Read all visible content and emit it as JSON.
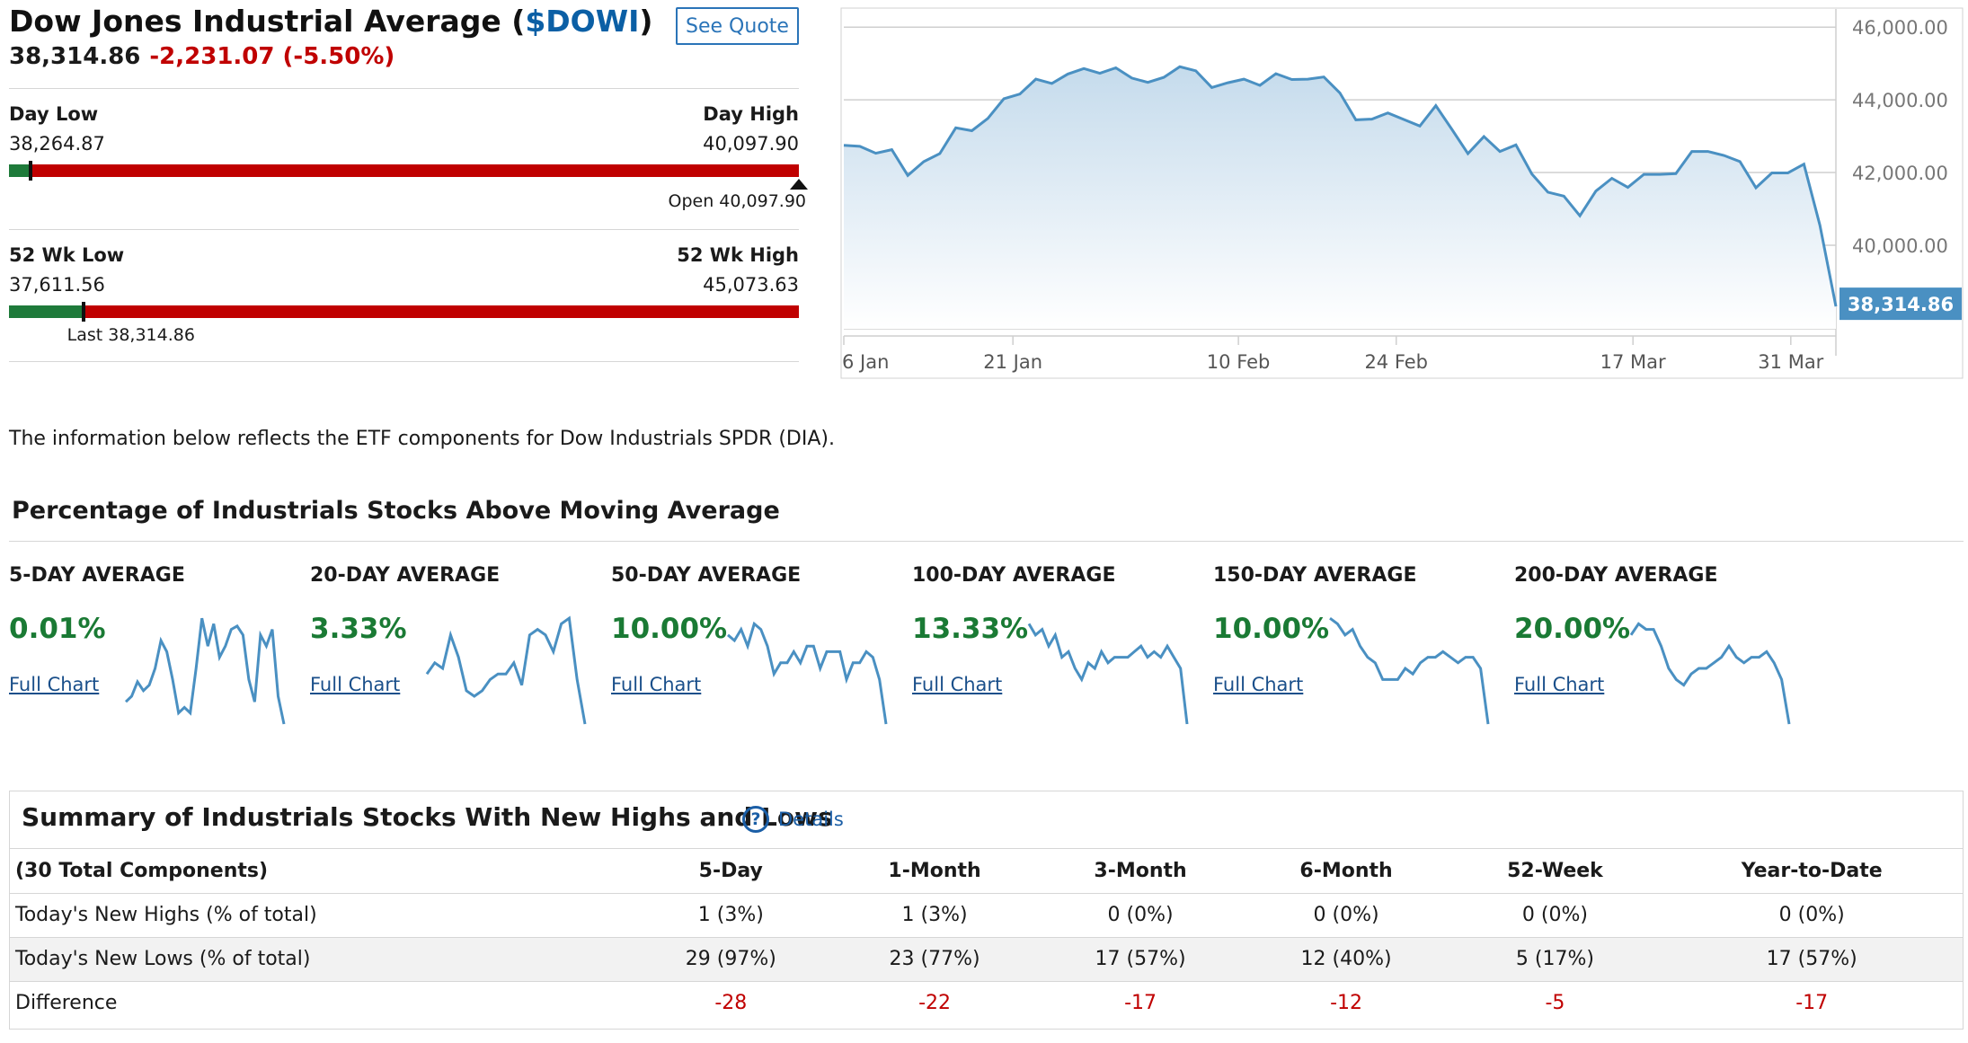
{
  "quote": {
    "title_prefix": "Dow Jones Industrial Average (",
    "symbol": "$DOWI",
    "title_suffix": ")",
    "last": "38,314.86",
    "change": "-2,231.07 (-5.50%)",
    "see_quote_label": "See Quote"
  },
  "day_range": {
    "low_label": "Day Low",
    "low": "38,264.87",
    "high_label": "Day High",
    "high": "40,097.90",
    "open_note": "Open 40,097.90",
    "last_position_fraction": 0.027,
    "open_position_fraction": 1.0
  },
  "week52_range": {
    "low_label": "52 Wk Low",
    "low": "37,611.56",
    "high_label": "52 Wk High",
    "high": "45,073.63",
    "last_note": "Last 38,314.86",
    "last_position_fraction": 0.094
  },
  "price_chart": {
    "x_labels": [
      "6 Jan",
      "21 Jan",
      "10 Feb",
      "24 Feb",
      "17 Mar",
      "31 Mar"
    ],
    "y_labels": [
      "46,000.00",
      "44,000.00",
      "42,000.00",
      "40,000.00"
    ],
    "last_label": "38,314.86",
    "line_color": "#4a90c2",
    "label_bg": "#4a90c2"
  },
  "chart_data": {
    "type": "area",
    "series": [
      {
        "values": [
          42750,
          42720,
          42530,
          42630,
          41920,
          42300,
          42520,
          43230,
          43150,
          43490,
          44030,
          44160,
          44570,
          44450,
          44710,
          44860,
          44730,
          44880,
          44600,
          44480,
          44620,
          44910,
          44800,
          44340,
          44470,
          44570,
          44400,
          44720,
          44560,
          44570,
          44630,
          44190,
          43450,
          43470,
          43640,
          43460,
          43280,
          43840,
          43190,
          42520,
          42990,
          42580,
          42760,
          41960,
          41460,
          41350,
          40810,
          41490,
          41840,
          41590,
          41950,
          41950,
          41970,
          42580,
          42580,
          42470,
          42300,
          41580,
          41990,
          41990,
          42230,
          40550,
          38314.86
        ]
      }
    ],
    "x_date_range": [
      "2025-01-06",
      "2025-04-04"
    ],
    "ylim": [
      37700,
      46500
    ],
    "y_ticks": [
      40000,
      42000,
      44000,
      46000
    ],
    "x_ticks": [
      "6 Jan",
      "21 Jan",
      "10 Feb",
      "24 Feb",
      "17 Mar",
      "31 Mar"
    ],
    "last_value": 38314.86,
    "grid": true
  },
  "info_text": "The information below reflects the ETF components for Dow Industrials SPDR (DIA).",
  "moving_averages": {
    "title": "Percentage of Industrials Stocks Above Moving Average",
    "link_label": "Full Chart",
    "spark_color": "#4a90c2",
    "value_color": "#1a7a34",
    "cards": [
      {
        "label": "5-DAY AVERAGE",
        "value": "0.01%",
        "spark": [
          20,
          25,
          38,
          30,
          35,
          50,
          75,
          65,
          40,
          10,
          15,
          10,
          50,
          95,
          70,
          90,
          60,
          70,
          85,
          88,
          80,
          40,
          20,
          80,
          70,
          85,
          25,
          0
        ]
      },
      {
        "label": "20-DAY AVERAGE",
        "value": "3.33%",
        "spark": [
          45,
          55,
          50,
          80,
          60,
          30,
          25,
          30,
          40,
          45,
          45,
          55,
          35,
          80,
          85,
          80,
          65,
          90,
          95,
          40,
          0
        ]
      },
      {
        "label": "50-DAY AVERAGE",
        "value": "10.00%",
        "spark": [
          80,
          75,
          85,
          70,
          90,
          85,
          70,
          45,
          55,
          55,
          65,
          55,
          70,
          70,
          50,
          65,
          65,
          65,
          40,
          55,
          55,
          65,
          60,
          40,
          0
        ]
      },
      {
        "label": "100-DAY AVERAGE",
        "value": "13.33%",
        "spark": [
          90,
          80,
          85,
          70,
          80,
          60,
          65,
          50,
          40,
          55,
          50,
          65,
          55,
          60,
          60,
          60,
          65,
          70,
          60,
          65,
          60,
          70,
          60,
          50,
          0
        ]
      },
      {
        "label": "150-DAY AVERAGE",
        "value": "10.00%",
        "spark": [
          95,
          90,
          80,
          85,
          70,
          60,
          55,
          40,
          40,
          40,
          50,
          45,
          55,
          60,
          60,
          65,
          60,
          55,
          60,
          60,
          50,
          0
        ]
      },
      {
        "label": "200-DAY AVERAGE",
        "value": "20.00%",
        "spark": [
          80,
          90,
          85,
          85,
          70,
          50,
          40,
          35,
          45,
          50,
          50,
          55,
          60,
          70,
          60,
          55,
          60,
          60,
          65,
          55,
          40,
          0
        ]
      }
    ]
  },
  "summary": {
    "title": "Summary of Industrials Stocks With New Highs and Lows",
    "details_label": "Details",
    "help_glyph": "?",
    "headers": [
      "(30 Total Components)",
      "5-Day",
      "1-Month",
      "3-Month",
      "6-Month",
      "52-Week",
      "Year-to-Date"
    ],
    "rows": [
      [
        "Today's New Highs (% of total)",
        "1 (3%)",
        "1 (3%)",
        "0 (0%)",
        "0 (0%)",
        "0 (0%)",
        "0 (0%)"
      ],
      [
        "Today's New Lows (% of total)",
        "29 (97%)",
        "23 (77%)",
        "17 (57%)",
        "12 (40%)",
        "5 (17%)",
        "17 (57%)"
      ],
      [
        "Difference",
        "-28",
        "-22",
        "-17",
        "-12",
        "-5",
        "-17"
      ]
    ]
  }
}
